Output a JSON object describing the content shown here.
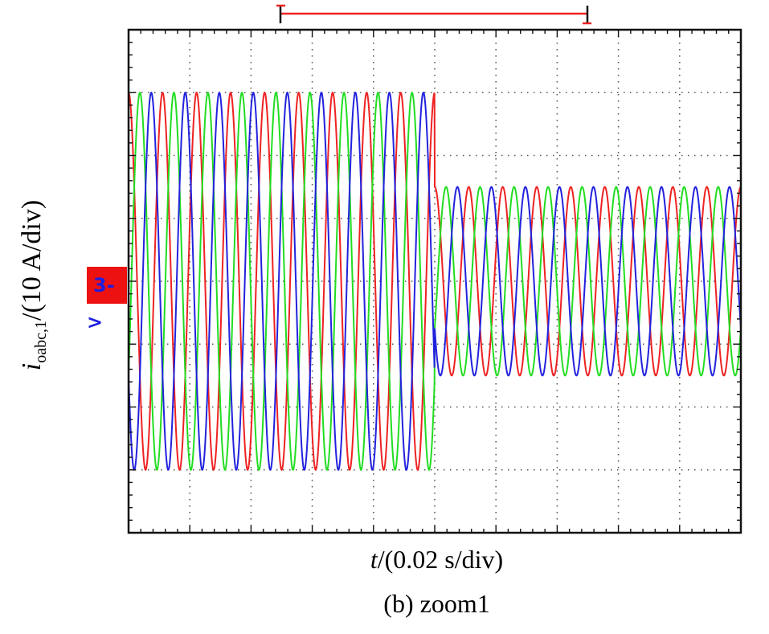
{
  "chart_data": {
    "type": "line",
    "xlabel_var": "t",
    "xlabel_unit": "/(0.02 s/div)",
    "ylabel_var": "i",
    "ylabel_sub": "oabc,1",
    "ylabel_unit": "/(10 A/div)",
    "caption": "(b) zoom1",
    "channel_marker": "3->",
    "x_divisions": 10,
    "y_divisions": 8,
    "xlim_div": [
      0,
      10
    ],
    "ylim_div": [
      -4,
      4
    ],
    "grid": true,
    "step_time_div": 5,
    "cycles_per_div": 1.8,
    "amplitude_before_div": 3.0,
    "amplitude_after_div": 1.5,
    "series": [
      {
        "phase_deg": 90,
        "color": "#ee2222"
      },
      {
        "phase_deg": -30,
        "color": "#22dd22"
      },
      {
        "phase_deg": -150,
        "color": "#2222dd"
      }
    ],
    "cursor_color": "#ee2222"
  }
}
